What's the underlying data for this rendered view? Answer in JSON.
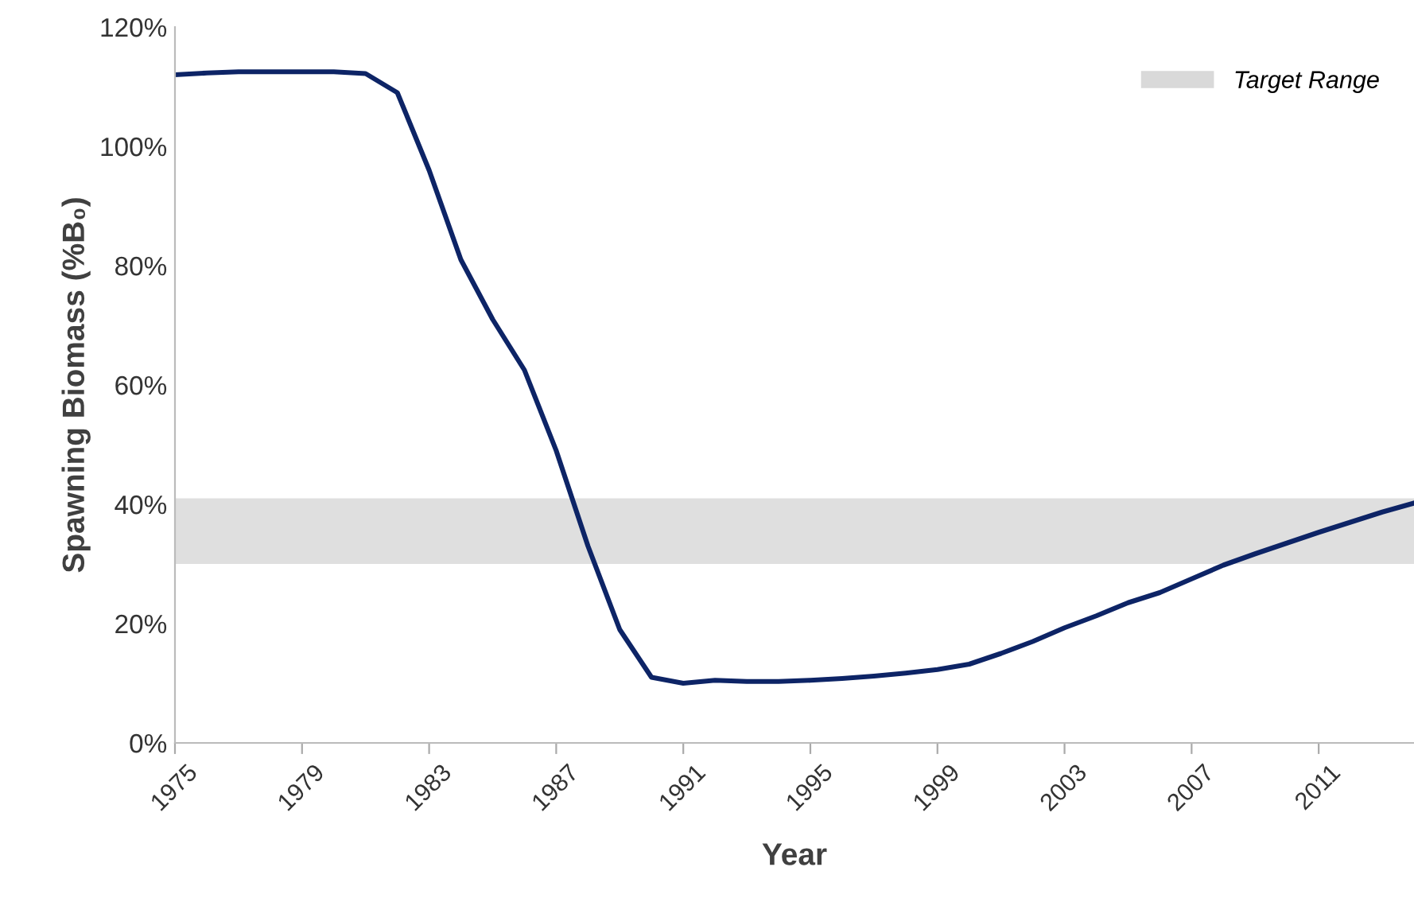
{
  "chart_data": {
    "type": "line",
    "xlabel": "Year",
    "ylabel": "Spawning Biomass (%B₀)",
    "x": [
      1975,
      1976,
      1977,
      1978,
      1979,
      1980,
      1981,
      1982,
      1983,
      1984,
      1985,
      1986,
      1987,
      1988,
      1989,
      1990,
      1991,
      1992,
      1993,
      1994,
      1995,
      1996,
      1997,
      1998,
      1999,
      2000,
      2001,
      2002,
      2003,
      2004,
      2005,
      2006,
      2007,
      2008,
      2009,
      2010,
      2011,
      2012,
      2013,
      2014
    ],
    "series": [
      {
        "color": "#0d2466",
        "values": [
          112,
          112.3,
          112.5,
          112.5,
          112.5,
          112.5,
          112.2,
          109,
          96,
          81,
          71,
          62.5,
          49,
          33,
          19,
          11,
          10,
          10.5,
          10.3,
          10.3,
          10.5,
          10.8,
          11.2,
          11.7,
          12.3,
          13.2,
          15,
          17,
          19.3,
          21.3,
          23.5,
          25.2,
          27.5,
          29.8,
          31.7,
          33.5,
          35.3,
          37,
          38.7,
          40.2
        ]
      }
    ],
    "xlim": [
      1975,
      2014
    ],
    "xticks": [
      1975,
      1979,
      1983,
      1987,
      1991,
      1995,
      1999,
      2003,
      2007,
      2011
    ],
    "ylim": [
      0,
      120
    ],
    "yticks": [
      {
        "value": 0,
        "label": "0%"
      },
      {
        "value": 20,
        "label": "20%"
      },
      {
        "value": 40,
        "label": "40%"
      },
      {
        "value": 60,
        "label": "60%"
      },
      {
        "value": 80,
        "label": "80%"
      },
      {
        "value": 100,
        "label": "100%"
      },
      {
        "value": 120,
        "label": "120%"
      }
    ],
    "bands": [
      {
        "axis": "y",
        "from": 30,
        "to": 41,
        "label": "Target Range",
        "color": "#d9d9d9"
      }
    ],
    "legend": "top right",
    "grid": false,
    "marker": "none",
    "line_style": "solid"
  }
}
